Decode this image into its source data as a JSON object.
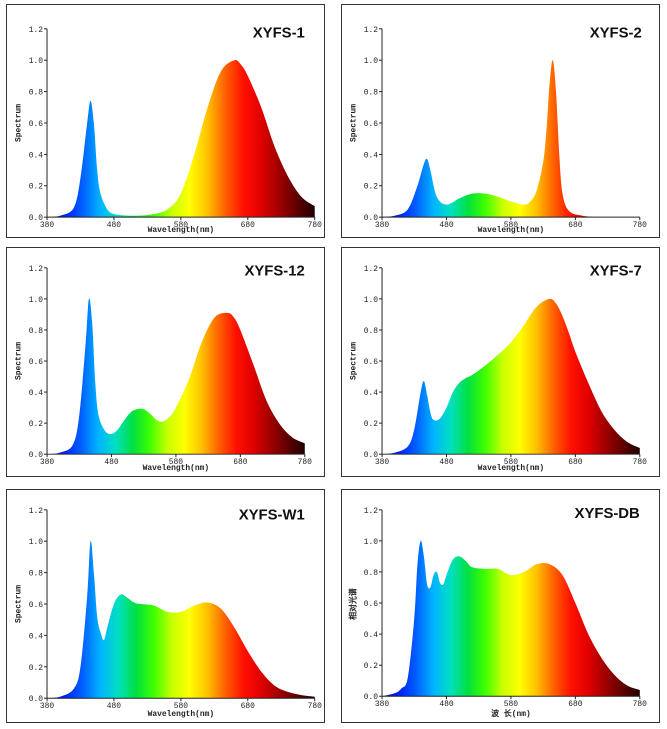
{
  "spectrum_colors": [
    "#1a00a0",
    "#0020ff",
    "#0060ff",
    "#00b4ff",
    "#00e0c0",
    "#00e040",
    "#40ff00",
    "#c8ff00",
    "#ffff00",
    "#ffc000",
    "#ff6000",
    "#ff1000",
    "#e00000",
    "#a00000",
    "#600000",
    "#200000"
  ],
  "chart_data": [
    {
      "type": "area",
      "title": "XYFS-1",
      "xlabel": "Wavelength(nm)",
      "ylabel": "Spectrum",
      "xlim": [
        380,
        780
      ],
      "ylim": [
        0,
        1.2
      ],
      "xticks": [
        "380",
        "480",
        "580",
        "680",
        "780"
      ],
      "yticks": [
        "0.0",
        "0.2",
        "0.4",
        "0.6",
        "0.8",
        "1.0",
        "1.2"
      ],
      "x": [
        380,
        400,
        420,
        430,
        440,
        445,
        450,
        455,
        460,
        470,
        480,
        500,
        520,
        540,
        560,
        580,
        600,
        620,
        640,
        660,
        670,
        680,
        700,
        720,
        740,
        760,
        780
      ],
      "values": [
        0,
        0.01,
        0.06,
        0.25,
        0.6,
        0.74,
        0.6,
        0.3,
        0.15,
        0.05,
        0.02,
        0.01,
        0.01,
        0.02,
        0.05,
        0.15,
        0.4,
        0.7,
        0.93,
        1.0,
        0.97,
        0.9,
        0.7,
        0.45,
        0.26,
        0.13,
        0.07
      ]
    },
    {
      "type": "area",
      "title": "XYFS-2",
      "xlabel": "Wavelength(nm)",
      "ylabel": "Spectrum",
      "xlim": [
        380,
        780
      ],
      "ylim": [
        0,
        1.2
      ],
      "xticks": [
        "380",
        "480",
        "580",
        "680",
        "780"
      ],
      "yticks": [
        "0.0",
        "0.2",
        "0.4",
        "0.6",
        "0.8",
        "1.0",
        "1.2"
      ],
      "x": [
        380,
        400,
        420,
        435,
        445,
        450,
        455,
        465,
        480,
        500,
        520,
        540,
        560,
        580,
        600,
        610,
        620,
        630,
        635,
        640,
        645,
        650,
        655,
        660,
        670,
        690,
        720,
        780
      ],
      "values": [
        0,
        0.01,
        0.05,
        0.2,
        0.34,
        0.37,
        0.3,
        0.13,
        0.08,
        0.12,
        0.15,
        0.15,
        0.13,
        0.1,
        0.08,
        0.1,
        0.17,
        0.35,
        0.55,
        0.85,
        1.0,
        0.8,
        0.4,
        0.15,
        0.04,
        0.01,
        0,
        0
      ]
    },
    {
      "type": "area",
      "title": "XYFS-12",
      "xlabel": "Wavelength(nm)",
      "ylabel": "Spectrum",
      "xlim": [
        380,
        780
      ],
      "ylim": [
        0,
        1.2
      ],
      "xticks": [
        "380",
        "480",
        "580",
        "680",
        "780"
      ],
      "yticks": [
        "0.0",
        "0.2",
        "0.4",
        "0.6",
        "0.8",
        "1.0",
        "1.2"
      ],
      "x": [
        380,
        400,
        420,
        430,
        440,
        445,
        450,
        455,
        460,
        470,
        480,
        490,
        500,
        510,
        520,
        530,
        540,
        550,
        560,
        570,
        580,
        600,
        620,
        640,
        660,
        670,
        680,
        700,
        720,
        740,
        760,
        780
      ],
      "values": [
        0,
        0.01,
        0.06,
        0.25,
        0.72,
        1.0,
        0.85,
        0.45,
        0.25,
        0.15,
        0.13,
        0.16,
        0.22,
        0.27,
        0.29,
        0.29,
        0.26,
        0.22,
        0.21,
        0.24,
        0.3,
        0.48,
        0.72,
        0.88,
        0.91,
        0.88,
        0.8,
        0.58,
        0.35,
        0.2,
        0.11,
        0.07
      ]
    },
    {
      "type": "area",
      "title": "XYFS-7",
      "xlabel": "Wavelength(nm)",
      "ylabel": "Spectrum",
      "xlim": [
        380,
        780
      ],
      "ylim": [
        0,
        1.2
      ],
      "xticks": [
        "380",
        "480",
        "580",
        "680",
        "780"
      ],
      "yticks": [
        "0.0",
        "0.2",
        "0.4",
        "0.6",
        "0.8",
        "1.0",
        "1.2"
      ],
      "x": [
        380,
        400,
        420,
        430,
        440,
        445,
        450,
        455,
        460,
        470,
        480,
        490,
        500,
        510,
        520,
        540,
        560,
        580,
        600,
        620,
        640,
        650,
        660,
        670,
        680,
        700,
        720,
        740,
        760,
        780
      ],
      "values": [
        0,
        0.01,
        0.05,
        0.16,
        0.4,
        0.47,
        0.38,
        0.27,
        0.22,
        0.23,
        0.3,
        0.4,
        0.46,
        0.49,
        0.51,
        0.57,
        0.64,
        0.72,
        0.83,
        0.95,
        1.0,
        0.97,
        0.89,
        0.78,
        0.66,
        0.46,
        0.28,
        0.16,
        0.08,
        0.04
      ]
    },
    {
      "type": "area",
      "title": "XYFS-W1",
      "xlabel": "Wavelength(nm)",
      "ylabel": "Spectrum",
      "xlim": [
        380,
        780
      ],
      "ylim": [
        0,
        1.2
      ],
      "xticks": [
        "380",
        "480",
        "580",
        "680",
        "780"
      ],
      "yticks": [
        "0.0",
        "0.2",
        "0.4",
        "0.6",
        "0.8",
        "1.0",
        "1.2"
      ],
      "x": [
        380,
        400,
        420,
        430,
        440,
        445,
        450,
        455,
        460,
        465,
        470,
        480,
        490,
        500,
        510,
        520,
        540,
        560,
        580,
        600,
        620,
        640,
        660,
        680,
        700,
        720,
        740,
        760,
        780
      ],
      "values": [
        0,
        0.01,
        0.06,
        0.2,
        0.65,
        1.0,
        0.8,
        0.52,
        0.42,
        0.37,
        0.45,
        0.6,
        0.66,
        0.64,
        0.61,
        0.6,
        0.59,
        0.55,
        0.55,
        0.59,
        0.61,
        0.57,
        0.45,
        0.3,
        0.17,
        0.08,
        0.04,
        0.02,
        0.01
      ]
    },
    {
      "type": "area",
      "title": "XYFS-DB",
      "xlabel": "波 长(nm)",
      "ylabel": "相对光谱",
      "xlim": [
        380,
        780
      ],
      "ylim": [
        0,
        1.2
      ],
      "xticks": [
        "380",
        "480",
        "580",
        "680",
        "780"
      ],
      "yticks": [
        "0.0",
        "0.2",
        "0.4",
        "0.6",
        "0.8",
        "1.0",
        "1.2"
      ],
      "x": [
        380,
        400,
        410,
        420,
        430,
        435,
        440,
        445,
        450,
        455,
        460,
        465,
        470,
        475,
        480,
        490,
        500,
        510,
        520,
        540,
        560,
        580,
        600,
        620,
        640,
        660,
        680,
        700,
        720,
        740,
        760,
        780
      ],
      "values": [
        0,
        0.02,
        0.05,
        0.12,
        0.5,
        0.85,
        1.0,
        0.9,
        0.72,
        0.7,
        0.78,
        0.8,
        0.73,
        0.72,
        0.78,
        0.88,
        0.9,
        0.87,
        0.83,
        0.82,
        0.82,
        0.78,
        0.8,
        0.85,
        0.85,
        0.78,
        0.6,
        0.4,
        0.25,
        0.14,
        0.07,
        0.04
      ]
    }
  ]
}
